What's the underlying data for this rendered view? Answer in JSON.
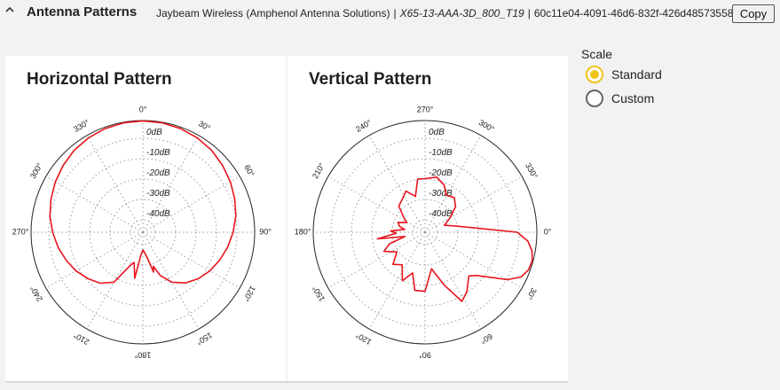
{
  "header": {
    "section_title": "Antenna Patterns",
    "manufacturer": "Jaybeam Wireless (Amphenol Antenna Solutions)",
    "separator": "|",
    "model": "X65-13-AAA-3D_800_T19",
    "uuid": "60c11e04-4091-46d6-832f-426d48573558",
    "copy_label": "Copy"
  },
  "scale": {
    "label": "Scale",
    "options": [
      "Standard",
      "Custom"
    ],
    "selected": "Standard"
  },
  "colors": {
    "trace": "#e8141c",
    "radio_selected": "#f0c419",
    "grid": "#999999"
  },
  "chart_data": [
    {
      "type": "polar-line",
      "title": "Horizontal Pattern",
      "db_rings": [
        "0dB",
        "-10dB",
        "-20dB",
        "-30dB",
        "-40dB"
      ],
      "angle_labels": [
        {
          "deg": 0,
          "label": "0°"
        },
        {
          "deg": 30,
          "label": "30°"
        },
        {
          "deg": 60,
          "label": "60°"
        },
        {
          "deg": 90,
          "label": "90°"
        },
        {
          "deg": 120,
          "label": "120°"
        },
        {
          "deg": 150,
          "label": "150°"
        },
        {
          "deg": 180,
          "label": "180°"
        },
        {
          "deg": 210,
          "label": "210°"
        },
        {
          "deg": 240,
          "label": "240°"
        },
        {
          "deg": 270,
          "label": "270°"
        },
        {
          "deg": 300,
          "label": "300°"
        },
        {
          "deg": 330,
          "label": "330°"
        }
      ],
      "orientation": "0° at top, clockwise",
      "series": [
        {
          "points": [
            [
              0,
              0
            ],
            [
              10,
              -0.1
            ],
            [
              20,
              -0.4
            ],
            [
              30,
              -0.9
            ],
            [
              40,
              -1.6
            ],
            [
              50,
              -2.7
            ],
            [
              60,
              -3.8
            ],
            [
              70,
              -5.0
            ],
            [
              80,
              -6.2
            ],
            [
              90,
              -7.7
            ],
            [
              100,
              -9.2
            ],
            [
              110,
              -10.8
            ],
            [
              120,
              -12.4
            ],
            [
              130,
              -14.2
            ],
            [
              140,
              -16.4
            ],
            [
              150,
              -19.5
            ],
            [
              158,
              -23.5
            ],
            [
              163,
              -27.5
            ],
            [
              165,
              -25.5
            ],
            [
              170,
              -31
            ],
            [
              175,
              -33
            ],
            [
              180,
              -34
            ],
            [
              185,
              -32
            ],
            [
              190,
              -23.5
            ],
            [
              196,
              -29
            ],
            [
              200,
              -28
            ],
            [
              210,
              -19.5
            ],
            [
              220,
              -16.3
            ],
            [
              230,
              -14.3
            ],
            [
              240,
              -12.4
            ],
            [
              250,
              -10.8
            ],
            [
              260,
              -9.2
            ],
            [
              270,
              -7.7
            ],
            [
              280,
              -6.2
            ],
            [
              290,
              -5.0
            ],
            [
              300,
              -3.8
            ],
            [
              310,
              -2.7
            ],
            [
              320,
              -1.6
            ],
            [
              330,
              -0.9
            ],
            [
              340,
              -0.4
            ],
            [
              350,
              -0.1
            ],
            [
              360,
              0
            ]
          ]
        }
      ]
    },
    {
      "type": "polar-line",
      "title": "Vertical Pattern",
      "db_rings": [
        "0dB",
        "-10dB",
        "-20dB",
        "-30dB",
        "-40dB"
      ],
      "angle_labels": [
        {
          "deg": 0,
          "label": "0°"
        },
        {
          "deg": 30,
          "label": "30°"
        },
        {
          "deg": 60,
          "label": "60°"
        },
        {
          "deg": 90,
          "label": "90°"
        },
        {
          "deg": 120,
          "label": "120°"
        },
        {
          "deg": 150,
          "label": "150°"
        },
        {
          "deg": 180,
          "label": "180°"
        },
        {
          "deg": 210,
          "label": "210°"
        },
        {
          "deg": 240,
          "label": "240°"
        },
        {
          "deg": 270,
          "label": "270°"
        },
        {
          "deg": 300,
          "label": "300°"
        },
        {
          "deg": 330,
          "label": "330°"
        }
      ],
      "orientation": "0° at right, clockwise",
      "series": [
        {
          "points": [
            [
              0,
              -7
            ],
            [
              5,
              -3
            ],
            [
              10,
              -1
            ],
            [
              15,
              -0.2
            ],
            [
              20,
              -0.5
            ],
            [
              25,
              -2
            ],
            [
              30,
              -6
            ],
            [
              35,
              -12
            ],
            [
              40,
              -16
            ],
            [
              45,
              -18
            ],
            [
              55,
              -14
            ],
            [
              62,
              -12
            ],
            [
              70,
              -20
            ],
            [
              80,
              -27
            ],
            [
              90,
              -19
            ],
            [
              100,
              -19
            ],
            [
              107,
              -25
            ],
            [
              115,
              -21
            ],
            [
              125,
              -26
            ],
            [
              135,
              -24
            ],
            [
              145,
              -28
            ],
            [
              155,
              -24
            ],
            [
              162,
              -27
            ],
            [
              168,
              -33
            ],
            [
              172,
              -23
            ],
            [
              178,
              -30
            ],
            [
              182,
              -28
            ],
            [
              188,
              -33
            ],
            [
              193,
              -31
            ],
            [
              200,
              -30
            ],
            [
              208,
              -33
            ],
            [
              215,
              -31
            ],
            [
              225,
              -27
            ],
            [
              235,
              -26
            ],
            [
              245,
              -24
            ],
            [
              255,
              -27
            ],
            [
              262,
              -21
            ],
            [
              270,
              -21
            ],
            [
              282,
              -20
            ],
            [
              292,
              -22
            ],
            [
              300,
              -25
            ],
            [
              310,
              -24
            ],
            [
              320,
              -26
            ],
            [
              330,
              -30
            ],
            [
              340,
              -33
            ],
            [
              350,
              -28
            ],
            [
              360,
              -7
            ]
          ]
        }
      ]
    }
  ]
}
